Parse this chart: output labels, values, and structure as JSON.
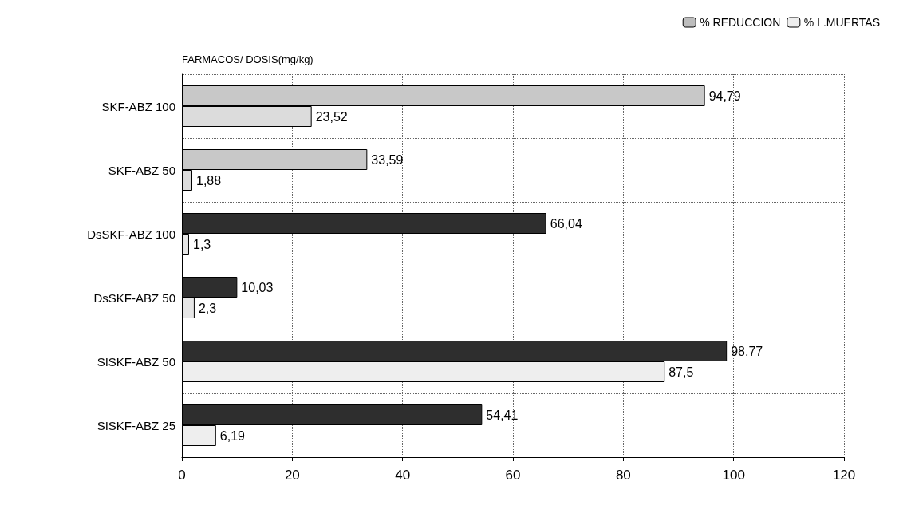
{
  "chart_data": {
    "type": "bar",
    "orientation": "horizontal",
    "ylabel": "FARMACOS/ DOSIS(mg/kg)",
    "categories": [
      "SKF-ABZ 100",
      "SKF-ABZ 50",
      "DsSKF-ABZ 100",
      "DsSKF-ABZ 50",
      "SISKF-ABZ 50",
      "SISKF-ABZ 25"
    ],
    "series": [
      {
        "name": "% REDUCCION",
        "color": "#bdbdbd",
        "colors": [
          "#c8c8c8",
          "#c8c8c8",
          "#2e2e2e",
          "#2e2e2e",
          "#2e2e2e",
          "#2e2e2e"
        ],
        "values": [
          94.79,
          33.59,
          66.04,
          10.03,
          98.77,
          54.41
        ],
        "value_labels": [
          "94,79",
          "33,59",
          "66,04",
          "10,03",
          "98,77",
          "54,41"
        ]
      },
      {
        "name": "% L.MUERTAS",
        "color": "#eeeeee",
        "colors": [
          "#dcdcdc",
          "#dcdcdc",
          "#e6e6e6",
          "#e6e6e6",
          "#eeeeee",
          "#eeeeee"
        ],
        "values": [
          23.52,
          1.88,
          1.3,
          2.3,
          87.5,
          6.19
        ],
        "value_labels": [
          "23,52",
          "1,88",
          "1,3",
          "2,3",
          "87,5",
          "6,19"
        ]
      }
    ],
    "xlim": [
      0,
      120
    ],
    "xticks": [
      0,
      20,
      40,
      60,
      80,
      100,
      120
    ],
    "grid": true,
    "legend": "top right"
  }
}
